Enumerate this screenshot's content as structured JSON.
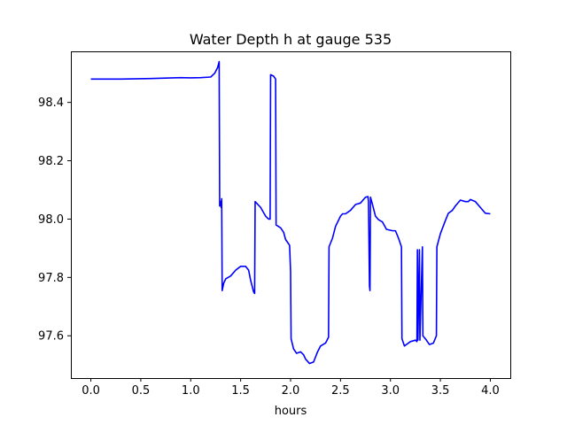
{
  "chart_data": {
    "type": "line",
    "title": "Water Depth h at gauge 535",
    "xlabel": "hours",
    "ylabel": "",
    "xlim": [
      -0.2,
      4.2
    ],
    "ylim": [
      97.455,
      98.575
    ],
    "grid": false,
    "xticks": [
      0.0,
      0.5,
      1.0,
      1.5,
      2.0,
      2.5,
      3.0,
      3.5,
      4.0
    ],
    "xtick_labels": [
      "0.0",
      "0.5",
      "1.0",
      "1.5",
      "2.0",
      "2.5",
      "3.0",
      "3.5",
      "4.0"
    ],
    "yticks": [
      97.6,
      97.8,
      98.0,
      98.2,
      98.4
    ],
    "ytick_labels": [
      "97.6",
      "97.8",
      "98.0",
      "98.2",
      "98.4"
    ],
    "colors": {
      "series": "#0000ff",
      "axes": "#000000",
      "background": "#ffffff"
    },
    "series": [
      {
        "name": "",
        "points": [
          [
            0.0,
            98.48
          ],
          [
            0.3,
            98.48
          ],
          [
            0.6,
            98.482
          ],
          [
            0.9,
            98.485
          ],
          [
            1.0,
            98.484
          ],
          [
            1.1,
            98.485
          ],
          [
            1.2,
            98.487
          ],
          [
            1.24,
            98.5
          ],
          [
            1.27,
            98.52
          ],
          [
            1.285,
            98.54
          ],
          [
            1.29,
            98.045
          ],
          [
            1.3,
            98.06
          ],
          [
            1.305,
            98.04
          ],
          [
            1.31,
            98.07
          ],
          [
            1.315,
            97.755
          ],
          [
            1.33,
            97.78
          ],
          [
            1.35,
            97.795
          ],
          [
            1.4,
            97.805
          ],
          [
            1.45,
            97.825
          ],
          [
            1.5,
            97.838
          ],
          [
            1.55,
            97.838
          ],
          [
            1.58,
            97.825
          ],
          [
            1.6,
            97.79
          ],
          [
            1.63,
            97.75
          ],
          [
            1.64,
            97.745
          ],
          [
            1.645,
            98.06
          ],
          [
            1.7,
            98.04
          ],
          [
            1.75,
            98.01
          ],
          [
            1.78,
            98.0
          ],
          [
            1.795,
            98.0
          ],
          [
            1.8,
            98.495
          ],
          [
            1.83,
            98.49
          ],
          [
            1.85,
            98.48
          ],
          [
            1.855,
            97.98
          ],
          [
            1.9,
            97.97
          ],
          [
            1.93,
            97.955
          ],
          [
            1.95,
            97.93
          ],
          [
            1.99,
            97.91
          ],
          [
            2.0,
            97.82
          ],
          [
            2.005,
            97.59
          ],
          [
            2.03,
            97.555
          ],
          [
            2.06,
            97.54
          ],
          [
            2.1,
            97.545
          ],
          [
            2.13,
            97.535
          ],
          [
            2.15,
            97.52
          ],
          [
            2.19,
            97.505
          ],
          [
            2.23,
            97.51
          ],
          [
            2.27,
            97.545
          ],
          [
            2.3,
            97.565
          ],
          [
            2.35,
            97.575
          ],
          [
            2.38,
            97.595
          ],
          [
            2.385,
            97.905
          ],
          [
            2.42,
            97.935
          ],
          [
            2.45,
            97.975
          ],
          [
            2.5,
            98.01
          ],
          [
            2.52,
            98.018
          ],
          [
            2.55,
            98.018
          ],
          [
            2.6,
            98.03
          ],
          [
            2.65,
            98.05
          ],
          [
            2.7,
            98.055
          ],
          [
            2.75,
            98.075
          ],
          [
            2.775,
            98.077
          ],
          [
            2.78,
            98.06
          ],
          [
            2.79,
            97.77
          ],
          [
            2.795,
            97.755
          ],
          [
            2.8,
            98.075
          ],
          [
            2.82,
            98.05
          ],
          [
            2.85,
            98.01
          ],
          [
            2.88,
            97.998
          ],
          [
            2.92,
            97.99
          ],
          [
            2.96,
            97.965
          ],
          [
            3.02,
            97.96
          ],
          [
            3.05,
            97.96
          ],
          [
            3.08,
            97.935
          ],
          [
            3.11,
            97.905
          ],
          [
            3.115,
            97.59
          ],
          [
            3.14,
            97.565
          ],
          [
            3.2,
            97.58
          ],
          [
            3.25,
            97.585
          ],
          [
            3.265,
            97.58
          ],
          [
            3.27,
            97.895
          ],
          [
            3.275,
            97.585
          ],
          [
            3.29,
            97.895
          ],
          [
            3.295,
            97.585
          ],
          [
            3.32,
            97.905
          ],
          [
            3.325,
            97.6
          ],
          [
            3.36,
            97.585
          ],
          [
            3.39,
            97.57
          ],
          [
            3.43,
            97.575
          ],
          [
            3.46,
            97.6
          ],
          [
            3.465,
            97.905
          ],
          [
            3.5,
            97.95
          ],
          [
            3.55,
            97.995
          ],
          [
            3.58,
            98.02
          ],
          [
            3.62,
            98.03
          ],
          [
            3.65,
            98.045
          ],
          [
            3.7,
            98.065
          ],
          [
            3.75,
            98.06
          ],
          [
            3.78,
            98.06
          ],
          [
            3.8,
            98.067
          ],
          [
            3.85,
            98.06
          ],
          [
            3.9,
            98.04
          ],
          [
            3.95,
            98.02
          ],
          [
            4.0,
            98.018
          ]
        ]
      }
    ]
  }
}
